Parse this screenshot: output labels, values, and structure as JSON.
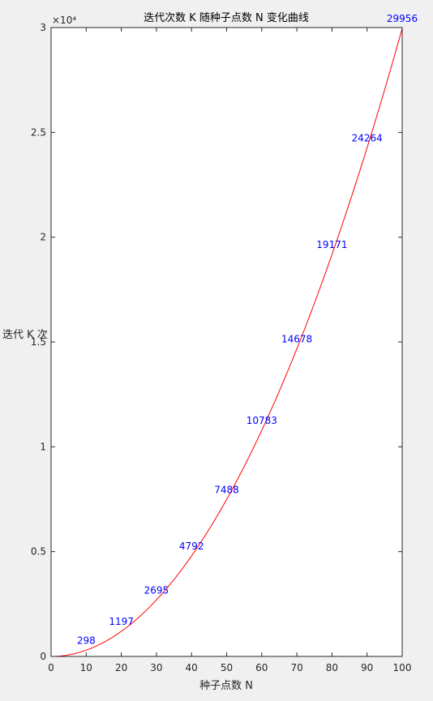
{
  "chart_data": {
    "type": "line",
    "title": "迭代次数 K 随种子点数 N 变化曲线",
    "xlabel": "种子点数 N",
    "ylabel": "迭代 K 次",
    "xlim": [
      0,
      100
    ],
    "ylim": [
      0,
      30000
    ],
    "exponent_label": "×10⁴",
    "xticks": [
      0,
      10,
      20,
      30,
      40,
      50,
      60,
      70,
      80,
      90,
      100
    ],
    "xtick_labels": [
      "0",
      "10",
      "20",
      "30",
      "40",
      "50",
      "60",
      "70",
      "80",
      "90",
      "100"
    ],
    "yticks": [
      0,
      5000,
      10000,
      15000,
      20000,
      25000,
      30000
    ],
    "ytick_labels": [
      "0",
      "0.5",
      "1",
      "1.5",
      "2",
      "2.5",
      "3"
    ],
    "grid": false,
    "series": [
      {
        "color": "#ff0000",
        "x": [
          1,
          10,
          20,
          30,
          40,
          50,
          60,
          70,
          80,
          90,
          100
        ],
        "y": [
          0,
          298,
          1197,
          2695,
          4792,
          7488,
          10783,
          14678,
          19171,
          24264,
          29956
        ]
      }
    ],
    "data_labels": [
      {
        "x": 10,
        "y": 298,
        "text": "298"
      },
      {
        "x": 20,
        "y": 1197,
        "text": "1197"
      },
      {
        "x": 30,
        "y": 2695,
        "text": "2695"
      },
      {
        "x": 40,
        "y": 4792,
        "text": "4792"
      },
      {
        "x": 50,
        "y": 7488,
        "text": "7488"
      },
      {
        "x": 60,
        "y": 10783,
        "text": "10783"
      },
      {
        "x": 70,
        "y": 14678,
        "text": "14678"
      },
      {
        "x": 80,
        "y": 19171,
        "text": "19171"
      },
      {
        "x": 90,
        "y": 24264,
        "text": "24264"
      },
      {
        "x": 100,
        "y": 29956,
        "text": "29956"
      }
    ],
    "label_color": "#0000ff",
    "axes_color": "#262626",
    "background": "#ffffff",
    "figure_background": "#f0f0f0"
  }
}
